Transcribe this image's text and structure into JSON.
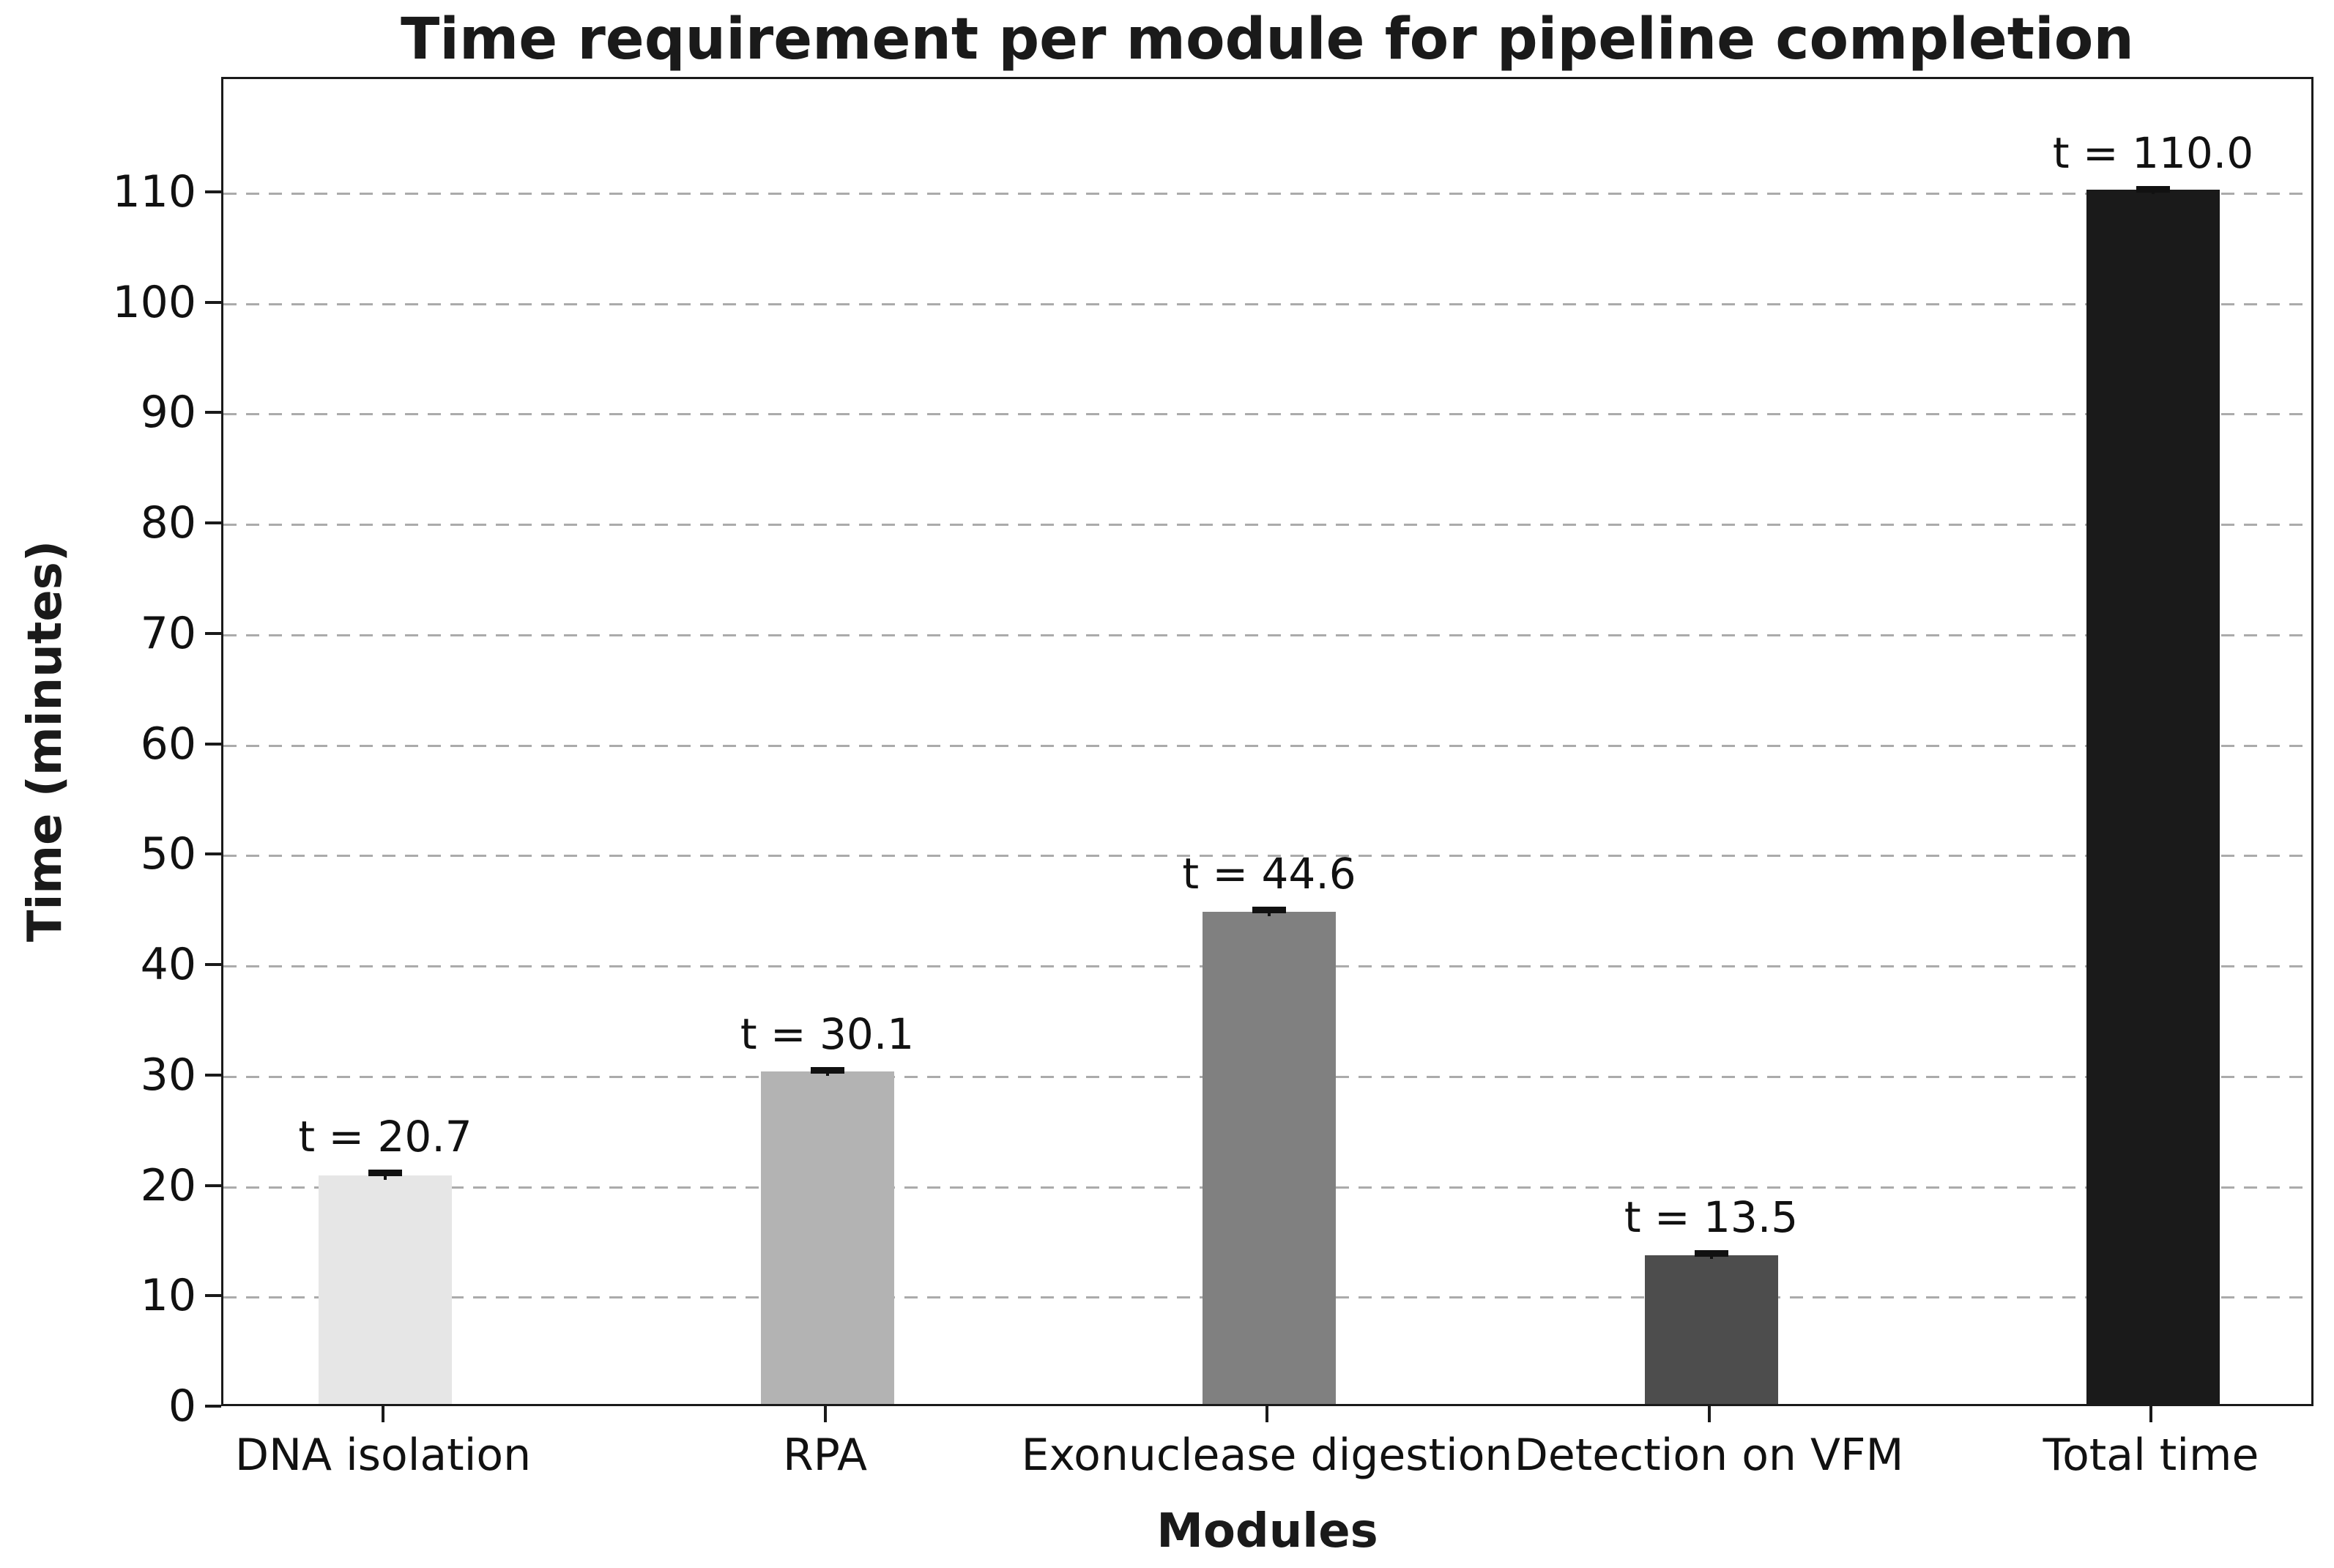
{
  "figure": {
    "background_color": "#ffffff",
    "text_color": "#1a1a1a"
  },
  "chart_data": {
    "type": "bar",
    "title": "Time requirement per module for pipeline completion",
    "xlabel": "Modules",
    "ylabel": "Time (minutes)",
    "categories": [
      "DNA isolation",
      "RPA",
      "Exonuclease digestion",
      "Detection on VFM",
      "Total time"
    ],
    "values": [
      20.7,
      30.1,
      44.6,
      13.5,
      110.0
    ],
    "errors": [
      0.6,
      0.5,
      0.5,
      0.5,
      0.4
    ],
    "bar_labels": [
      "t = 20.7",
      "t = 30.1",
      "t = 44.6",
      "t = 13.5",
      "t = 110.0"
    ],
    "bar_colors": [
      "#e6e6e6",
      "#b3b3b3",
      "#808080",
      "#4d4d4d",
      "#1a1a1a"
    ],
    "error_color": "#111111",
    "yticks": [
      0,
      10,
      20,
      30,
      40,
      50,
      60,
      70,
      80,
      90,
      100,
      110
    ],
    "ylim": [
      0,
      120.4
    ],
    "grid": {
      "axis": "y",
      "style": "dashed",
      "color": "#ababab",
      "on": true,
      "axisbelow": true
    },
    "legend": null,
    "spine_color": "#1a1a1a"
  }
}
